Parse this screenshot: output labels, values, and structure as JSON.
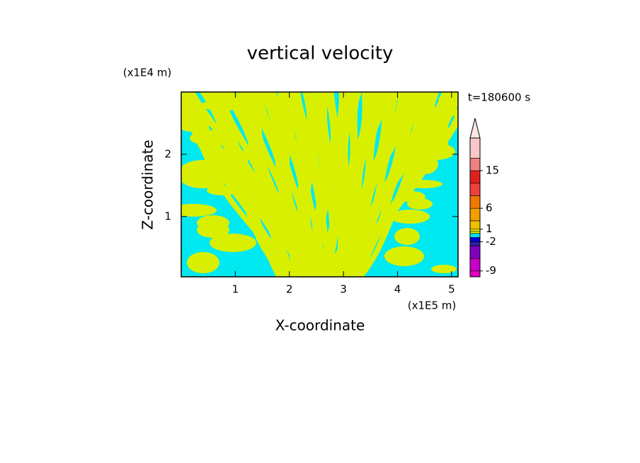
{
  "chart_data": {
    "type": "contour",
    "title": "vertical velocity",
    "x_label": "X-coordinate",
    "y_label": "Z-coordinate",
    "x_unit": "(x1E5 m)",
    "y_unit": "(x1E4 m)",
    "time_label": "t=180600 s",
    "xlim": [
      0,
      5.12
    ],
    "ylim": [
      0.03,
      3.0
    ],
    "xticks": [
      1,
      2,
      3,
      4,
      5
    ],
    "yticks": [
      1,
      2
    ],
    "field_colors": [
      "#00e8f0",
      "#d8f000"
    ],
    "colorbar": {
      "clim": [
        -10.4,
        22.8
      ],
      "ticks": [
        -9,
        -2,
        1,
        6,
        15
      ],
      "levels": [
        -10.4,
        -9,
        -6,
        -3,
        -2,
        -1,
        0,
        0.5,
        1,
        3,
        6,
        9,
        12,
        15,
        18,
        22.8
      ],
      "colors": [
        "#e000c0",
        "#c800c8",
        "#8000c0",
        "#3020a0",
        "#0000e0",
        "#00e0f0",
        "#d8f000",
        "#f0f000",
        "#f0c000",
        "#f0a000",
        "#f07800",
        "#f04040",
        "#e02020",
        "#f08080",
        "#f8c8c8"
      ],
      "extend_color": "#fbe4e4"
    }
  }
}
